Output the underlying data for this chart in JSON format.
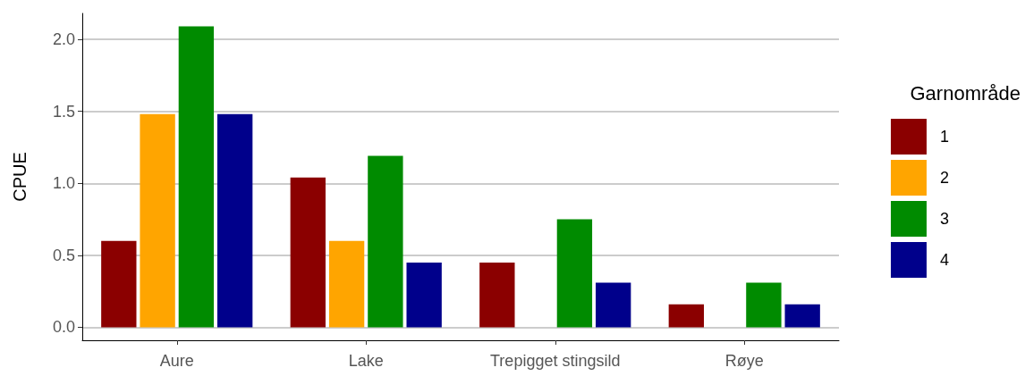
{
  "chart_data": {
    "type": "bar",
    "ylabel": "CPUE",
    "legend_title": "Garnområde",
    "categories": [
      "Aure",
      "Lake",
      "Trepigget stingsild",
      "Røye"
    ],
    "series": [
      {
        "name": "1",
        "color": "#8b0000",
        "values": [
          0.6,
          1.04,
          0.45,
          0.16
        ]
      },
      {
        "name": "2",
        "color": "#ffa500",
        "values": [
          1.48,
          0.6,
          null,
          null
        ]
      },
      {
        "name": "3",
        "color": "#008b00",
        "values": [
          2.09,
          1.19,
          0.75,
          0.31
        ]
      },
      {
        "name": "4",
        "color": "#00008b",
        "values": [
          1.48,
          0.45,
          0.31,
          0.16
        ]
      }
    ],
    "ylim": [
      -0.09,
      2.18
    ],
    "yticks": [
      {
        "value": 0,
        "label": "0.0"
      },
      {
        "value": 0.5,
        "label": "0.5"
      },
      {
        "value": 1,
        "label": "1.0"
      },
      {
        "value": 1.5,
        "label": "1.5"
      },
      {
        "value": 2,
        "label": "2.0"
      }
    ],
    "grid": "y",
    "legend": "right"
  }
}
